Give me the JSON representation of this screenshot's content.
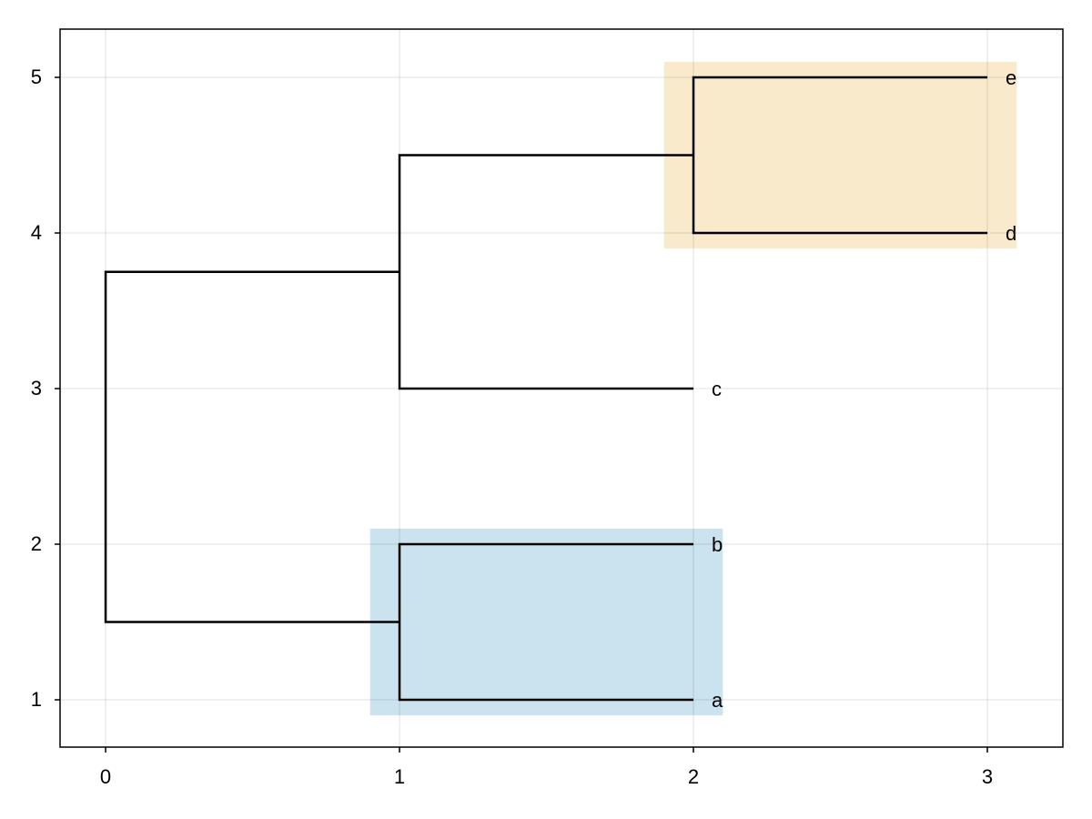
{
  "chart_data": {
    "type": "dendrogram",
    "xlim": [
      -0.155,
      3.257
    ],
    "xticks": [
      0,
      1,
      2,
      3
    ],
    "ylim": [
      0.696,
      5.31
    ],
    "yticks": [
      1,
      2,
      3,
      4,
      5
    ],
    "grid": true,
    "line_color": "#000000",
    "highlights": [
      {
        "xlim": [
          0.9,
          2.1
        ],
        "ylim": [
          0.9,
          2.1
        ],
        "color": "#cbe2ef"
      },
      {
        "xlim": [
          1.9,
          3.1
        ],
        "ylim": [
          3.9,
          5.1
        ],
        "color": "#f9eacc"
      }
    ],
    "segments": [
      {
        "x": [
          2,
          1,
          1,
          2
        ],
        "y": [
          1,
          1,
          2,
          2
        ]
      },
      {
        "x": [
          3,
          2,
          2,
          3
        ],
        "y": [
          4,
          4,
          5,
          5
        ]
      },
      {
        "x": [
          2,
          1,
          1,
          2
        ],
        "y": [
          3,
          3,
          4.5,
          4.5
        ]
      },
      {
        "x": [
          1,
          0,
          0,
          1
        ],
        "y": [
          1.5,
          1.5,
          3.75,
          3.75
        ]
      }
    ],
    "leaves": {
      "labels": [
        "a",
        "b",
        "c",
        "d",
        "e"
      ],
      "x": [
        2,
        2,
        2,
        3,
        3
      ],
      "y": [
        1,
        2,
        3,
        4,
        5
      ]
    }
  }
}
